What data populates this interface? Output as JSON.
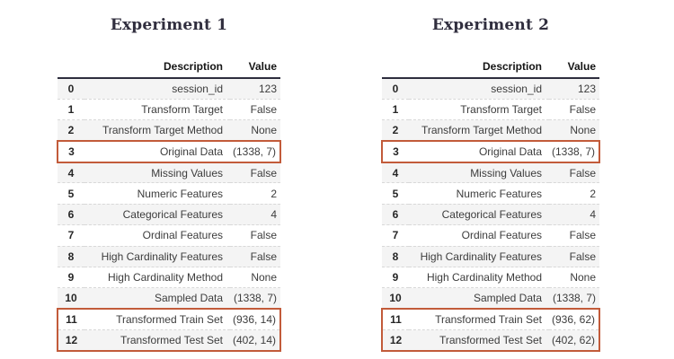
{
  "colors": {
    "title": "#302e3e",
    "header_underline": "#2d2d3d",
    "stripe": "#f4f4f4",
    "row_divider": "#d8d8d8",
    "highlight_border": "#c25b3a",
    "text": "#3c3c3c",
    "header_text": "#151515",
    "background": "#ffffff"
  },
  "experiments": [
    {
      "title": "Experiment 1",
      "columns": {
        "index": "",
        "description": "Description",
        "value": "Value"
      },
      "rows": [
        {
          "index": "0",
          "description": "session_id",
          "value": "123",
          "box": null
        },
        {
          "index": "1",
          "description": "Transform Target",
          "value": "False",
          "box": null
        },
        {
          "index": "2",
          "description": "Transform Target Method",
          "value": "None",
          "box": null
        },
        {
          "index": "3",
          "description": "Original Data",
          "value": "(1338, 7)",
          "box": "single"
        },
        {
          "index": "4",
          "description": "Missing Values",
          "value": "False",
          "box": null
        },
        {
          "index": "5",
          "description": "Numeric Features",
          "value": "2",
          "box": null
        },
        {
          "index": "6",
          "description": "Categorical Features",
          "value": "4",
          "box": null
        },
        {
          "index": "7",
          "description": "Ordinal Features",
          "value": "False",
          "box": null
        },
        {
          "index": "8",
          "description": "High Cardinality Features",
          "value": "False",
          "box": null
        },
        {
          "index": "9",
          "description": "High Cardinality Method",
          "value": "None",
          "box": null
        },
        {
          "index": "10",
          "description": "Sampled Data",
          "value": "(1338, 7)",
          "box": null
        },
        {
          "index": "11",
          "description": "Transformed Train Set",
          "value": "(936, 14)",
          "box": "start"
        },
        {
          "index": "12",
          "description": "Transformed Test Set",
          "value": "(402, 14)",
          "box": "end"
        }
      ]
    },
    {
      "title": "Experiment 2",
      "columns": {
        "index": "",
        "description": "Description",
        "value": "Value"
      },
      "rows": [
        {
          "index": "0",
          "description": "session_id",
          "value": "123",
          "box": null
        },
        {
          "index": "1",
          "description": "Transform Target",
          "value": "False",
          "box": null
        },
        {
          "index": "2",
          "description": "Transform Target Method",
          "value": "None",
          "box": null
        },
        {
          "index": "3",
          "description": "Original Data",
          "value": "(1338, 7)",
          "box": "single"
        },
        {
          "index": "4",
          "description": "Missing Values",
          "value": "False",
          "box": null
        },
        {
          "index": "5",
          "description": "Numeric Features",
          "value": "2",
          "box": null
        },
        {
          "index": "6",
          "description": "Categorical Features",
          "value": "4",
          "box": null
        },
        {
          "index": "7",
          "description": "Ordinal Features",
          "value": "False",
          "box": null
        },
        {
          "index": "8",
          "description": "High Cardinality Features",
          "value": "False",
          "box": null
        },
        {
          "index": "9",
          "description": "High Cardinality Method",
          "value": "None",
          "box": null
        },
        {
          "index": "10",
          "description": "Sampled Data",
          "value": "(1338, 7)",
          "box": null
        },
        {
          "index": "11",
          "description": "Transformed Train Set",
          "value": "(936, 62)",
          "box": "start"
        },
        {
          "index": "12",
          "description": "Transformed Test Set",
          "value": "(402, 62)",
          "box": "end"
        }
      ]
    }
  ]
}
